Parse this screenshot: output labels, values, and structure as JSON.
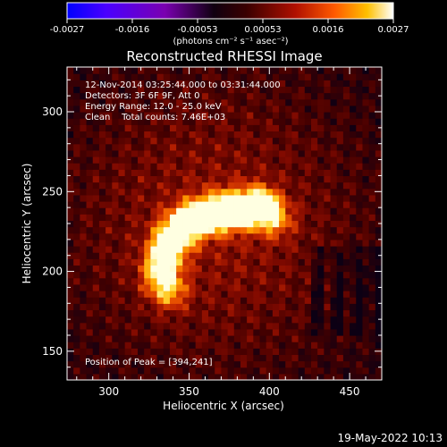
{
  "colorbar": {
    "ticks": [
      "-0.0027",
      "-0.0016",
      "-0.00053",
      "0.00053",
      "0.0016",
      "0.0027"
    ],
    "units": "(photons cm⁻² s⁻¹ asec⁻²)",
    "colormap": [
      "#0000ff",
      "#5a00ff",
      "#8a00c8",
      "#000000",
      "#6a0000",
      "#c01000",
      "#ff5000",
      "#ffb000",
      "#ffff80",
      "#ffffff"
    ]
  },
  "plot": {
    "title": "Reconstructed RHESSI Image",
    "annotations": [
      "12-Nov-2014 03:25:44.000 to 03:31:44.000",
      "Detectors: 3F 6F 9F, Att 0",
      "Energy Range: 12.0 - 25.0 keV",
      "Clean    Total counts: 7.46E+03"
    ],
    "peak_text": "Position of Peak = [394,241]"
  },
  "footer": {
    "timestamp": "19-May-2022 10:13"
  },
  "chart_data": {
    "type": "heatmap",
    "title": "Reconstructed RHESSI Image",
    "xlabel": "Heliocentric X (arcsec)",
    "ylabel": "Heliocentric Y (arcsec)",
    "xlim": [
      274,
      470
    ],
    "ylim": [
      132,
      328
    ],
    "xticks": [
      300,
      350,
      400,
      450
    ],
    "yticks": [
      150,
      200,
      250,
      300
    ],
    "zlim": [
      -0.0027,
      0.0027
    ],
    "peak": {
      "x": 394,
      "y": 241
    },
    "sources": [
      {
        "x": 394,
        "y": 241,
        "amp": 1.0
      },
      {
        "x": 380,
        "y": 239,
        "amp": 0.78
      },
      {
        "x": 368,
        "y": 237,
        "amp": 0.85
      },
      {
        "x": 355,
        "y": 234,
        "amp": 0.72
      },
      {
        "x": 345,
        "y": 228,
        "amp": 0.68
      },
      {
        "x": 338,
        "y": 219,
        "amp": 0.62
      },
      {
        "x": 334,
        "y": 208,
        "amp": 0.58
      },
      {
        "x": 332,
        "y": 197,
        "amp": 0.5
      },
      {
        "x": 338,
        "y": 187,
        "amp": 0.46
      },
      {
        "x": 404,
        "y": 233,
        "amp": 0.45
      }
    ]
  }
}
